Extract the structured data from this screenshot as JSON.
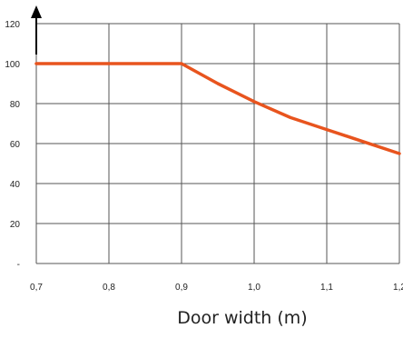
{
  "chart_data": {
    "type": "line",
    "xlabel": "Door width (m)",
    "ylabel": "",
    "xlim": [
      0.7,
      1.2
    ],
    "ylim": [
      0,
      120
    ],
    "grid": true,
    "x_ticks": [
      "0,7",
      "0,8",
      "0,9",
      "1,0",
      "1,1",
      "1,2"
    ],
    "y_ticks": [
      "-",
      "20",
      "40",
      "60",
      "80",
      "100",
      "120"
    ],
    "series": [
      {
        "color": "#e8541e",
        "points": [
          {
            "x": 0.7,
            "y": 100
          },
          {
            "x": 0.8,
            "y": 100
          },
          {
            "x": 0.9,
            "y": 100
          },
          {
            "x": 0.95,
            "y": 90
          },
          {
            "x": 1.0,
            "y": 81
          },
          {
            "x": 1.05,
            "y": 73
          },
          {
            "x": 1.1,
            "y": 67
          },
          {
            "x": 1.15,
            "y": 61
          },
          {
            "x": 1.2,
            "y": 55
          }
        ]
      }
    ]
  }
}
